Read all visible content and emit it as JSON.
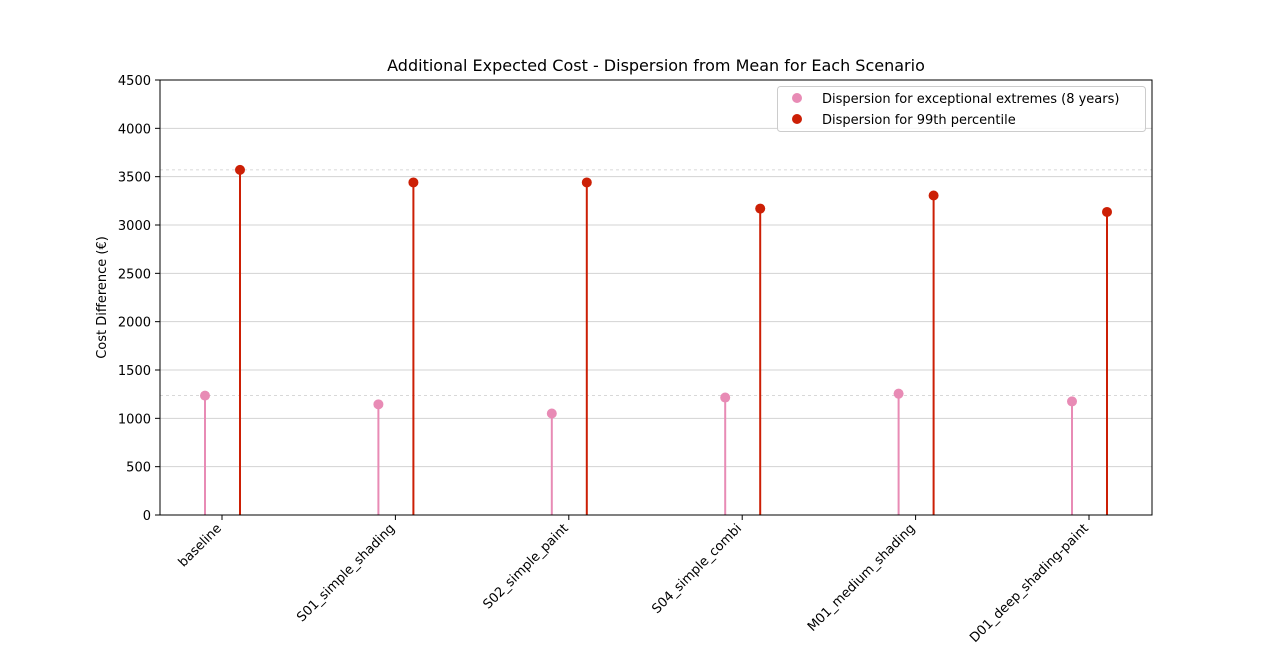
{
  "chart_data": {
    "type": "lollipop",
    "title": "Additional Expected Cost - Dispersion from Mean for Each Scenario",
    "xlabel": "",
    "ylabel": "Cost Difference (€)",
    "ylim": [
      0,
      4500
    ],
    "yticks": [
      0,
      500,
      1000,
      1500,
      2000,
      2500,
      3000,
      3500,
      4000,
      4500
    ],
    "categories": [
      "baseline",
      "S01_simple_shading",
      "S02_simple_paint",
      "S04_simple_combi",
      "M01_medium_shading",
      "D01_deep_shading-paint"
    ],
    "series": [
      {
        "name": "Dispersion for exceptional extremes (8 years)",
        "color": "#e88bb5",
        "values": [
          1235,
          1145,
          1050,
          1215,
          1255,
          1175
        ]
      },
      {
        "name": "Dispersion for 99th percentile",
        "color": "#cc1f05",
        "values": [
          3570,
          3440,
          3440,
          3170,
          3305,
          3135
        ]
      }
    ],
    "reference_lines": [
      {
        "value": 3570,
        "style": "dashed"
      },
      {
        "value": 1235,
        "style": "dashed"
      }
    ],
    "grid": "horizontal",
    "legend_position": "top-right"
  }
}
